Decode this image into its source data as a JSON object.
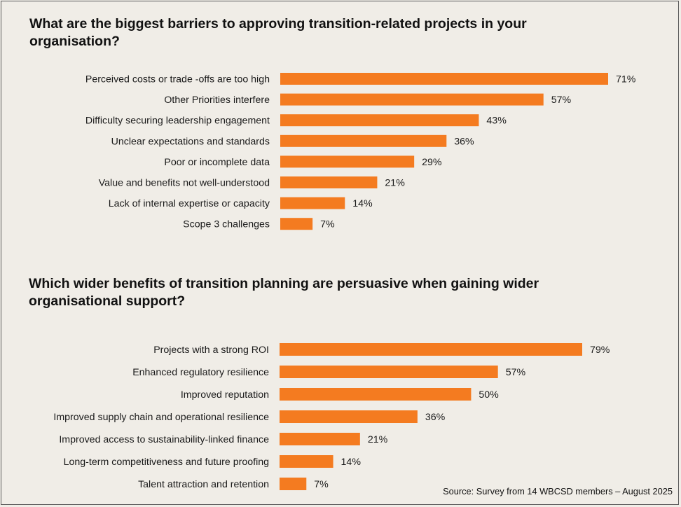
{
  "chart_data": [
    {
      "type": "bar",
      "orientation": "horizontal",
      "title": "What are the biggest barriers to approving transition-related projects in your organisation?",
      "categories": [
        "Perceived costs or trade -offs are too high",
        "Other Priorities interfere",
        "Difficulty securing leadership engagement",
        "Unclear expectations and standards",
        "Poor or incomplete data",
        "Value and benefits not well-understood",
        "Lack of internal expertise or capacity",
        "Scope 3 challenges"
      ],
      "values": [
        71,
        57,
        43,
        36,
        29,
        21,
        14,
        7
      ],
      "value_suffix": "%",
      "xlabel": "",
      "ylabel": "",
      "xlim": [
        0,
        71
      ],
      "color": "#f47b20"
    },
    {
      "type": "bar",
      "orientation": "horizontal",
      "title": "Which wider benefits of transition planning are persuasive when gaining wider organisational support?",
      "categories": [
        "Projects with a strong ROI",
        "Enhanced regulatory resilience",
        "Improved reputation",
        "Improved supply chain and operational resilience",
        "Improved access to sustainability-linked finance",
        "Long-term competitiveness and future proofing",
        "Talent attraction and retention"
      ],
      "values": [
        79,
        57,
        50,
        36,
        21,
        14,
        7
      ],
      "value_suffix": "%",
      "xlabel": "",
      "ylabel": "",
      "xlim": [
        0,
        79
      ],
      "color": "#f47b20"
    }
  ],
  "source": "Source: Survey from 14 WBCSD members – August 2025"
}
